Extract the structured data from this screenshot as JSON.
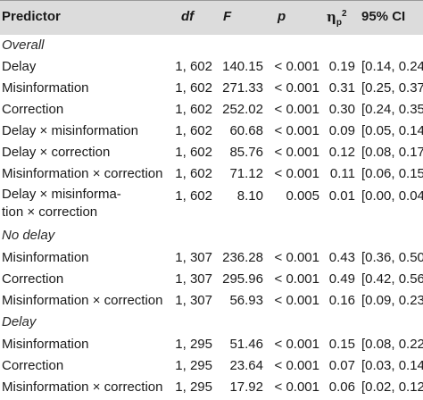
{
  "header": {
    "predictor": "Predictor",
    "df": "df",
    "F": "F",
    "p": "p",
    "eta_base": "η",
    "eta_sub": "p",
    "eta_sup": "2",
    "ci": "95% CI"
  },
  "sections": {
    "overall": "Overall",
    "no_delay": "No delay",
    "delay": "Delay"
  },
  "rows": [
    {
      "predictor": "Delay",
      "df": "1, 602",
      "F": "140.15",
      "p": "< 0.001",
      "eta": "0.19",
      "ci": "[0.14, 0.24]"
    },
    {
      "predictor": "Misinformation",
      "df": "1, 602",
      "F": "271.33",
      "p": "< 0.001",
      "eta": "0.31",
      "ci": "[0.25, 0.37]"
    },
    {
      "predictor": "Correction",
      "df": "1, 602",
      "F": "252.02",
      "p": "< 0.001",
      "eta": "0.30",
      "ci": "[0.24, 0.35]"
    },
    {
      "predictor": "Delay × misinformation",
      "df": "1, 602",
      "F": "60.68",
      "p": "< 0.001",
      "eta": "0.09",
      "ci": "[0.05, 0.14]"
    },
    {
      "predictor": "Delay × correction",
      "df": "1, 602",
      "F": "85.76",
      "p": "< 0.001",
      "eta": "0.12",
      "ci": "[0.08, 0.17]"
    },
    {
      "predictor": "Misinformation × correction",
      "df": "1, 602",
      "F": "71.12",
      "p": "< 0.001",
      "eta": "0.11",
      "ci": "[0.06, 0.15]"
    },
    {
      "predictor_line1": "Delay × misinforma-",
      "predictor_line2": "tion × correction",
      "df": "1, 602",
      "F": "8.10",
      "p": "0.005",
      "eta": "0.01",
      "ci": "[0.00, 0.04]"
    },
    {
      "predictor": "Misinformation",
      "df": "1, 307",
      "F": "236.28",
      "p": "< 0.001",
      "eta": "0.43",
      "ci": "[0.36, 0.50]"
    },
    {
      "predictor": "Correction",
      "df": "1, 307",
      "F": "295.96",
      "p": "< 0.001",
      "eta": "0.49",
      "ci": "[0.42, 0.56]"
    },
    {
      "predictor": "Misinformation × correction",
      "df": "1, 307",
      "F": "56.93",
      "p": "< 0.001",
      "eta": "0.16",
      "ci": "[0.09, 0.23]"
    },
    {
      "predictor": "Misinformation",
      "df": "1, 295",
      "F": "51.46",
      "p": "< 0.001",
      "eta": "0.15",
      "ci": "[0.08, 0.22]"
    },
    {
      "predictor": "Correction",
      "df": "1, 295",
      "F": "23.64",
      "p": "< 0.001",
      "eta": "0.07",
      "ci": "[0.03, 0.14]"
    },
    {
      "predictor": "Misinformation × correction",
      "df": "1, 295",
      "F": "17.92",
      "p": "< 0.001",
      "eta": "0.06",
      "ci": "[0.02, 0.12]"
    }
  ]
}
